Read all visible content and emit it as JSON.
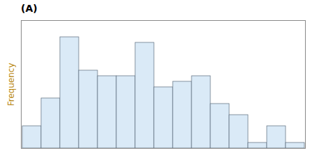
{
  "chart_data": {
    "type": "bar",
    "title": "(A)",
    "ylabel": "Frequency",
    "categories": [
      null,
      null,
      null,
      null,
      null,
      null,
      null,
      null,
      null,
      null,
      null,
      null,
      null,
      null,
      null
    ],
    "values": [
      2,
      4.5,
      10,
      7,
      6.5,
      6.5,
      9.5,
      5.5,
      6,
      6.5,
      4,
      3,
      0.5,
      2,
      0.5
    ],
    "color": "#daeaf7",
    "ylim": [
      0,
      11.5
    ],
    "yticks": [],
    "grid": false,
    "tick_labels": false
  }
}
